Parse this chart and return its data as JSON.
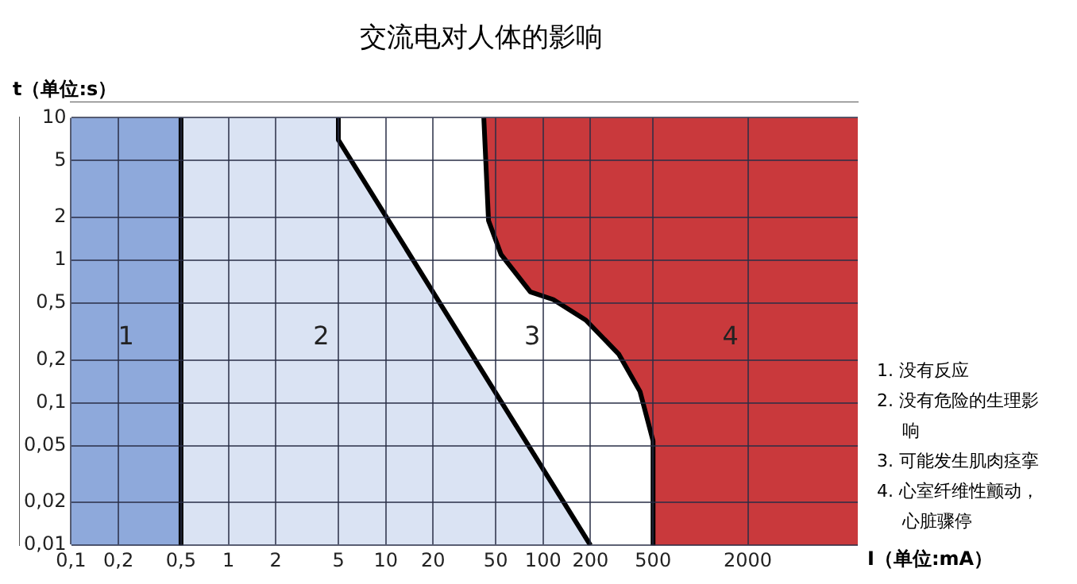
{
  "chart_data": {
    "type": "area",
    "title": "交流电对人体的影响",
    "xlabel": "I（单位:mA）",
    "ylabel": "t（单位:s）",
    "log": "xy",
    "grid": true,
    "legend": false,
    "xlim": [
      0.1,
      10000
    ],
    "ylim": [
      0.01,
      10
    ],
    "xticks": [
      {
        "value": 0.1,
        "label": "0,1"
      },
      {
        "value": 0.2,
        "label": "0,2"
      },
      {
        "value": 0.5,
        "label": "0,5"
      },
      1,
      2,
      5,
      10,
      20,
      50,
      100,
      200,
      500,
      2000
    ],
    "yticks": [
      10,
      5,
      2,
      1,
      {
        "value": 0.5,
        "label": "0,5"
      },
      {
        "value": 0.2,
        "label": "0,2"
      },
      {
        "value": 0.1,
        "label": "0,1"
      },
      {
        "value": 0.05,
        "label": "0,05"
      },
      {
        "value": 0.02,
        "label": "0,02"
      },
      {
        "value": 0.01,
        "label": "0,01"
      }
    ],
    "bands": [
      {
        "axis": "x",
        "from": 0.1,
        "to": 0.5,
        "color": "#8ea9db"
      },
      {
        "axis": "x",
        "from": 0.5,
        "to": 10000,
        "color": "#dae3f3"
      }
    ],
    "series": [
      {
        "type": "line",
        "color": "#000000",
        "x": [
          0.5,
          0.5
        ],
        "values": [
          10,
          0.01
        ]
      },
      {
        "color": "#ffffff",
        "x": [
          10000,
          5,
          5,
          200,
          10000
        ],
        "values": [
          10,
          10,
          7,
          0.01,
          0.01
        ]
      },
      {
        "color": "#c9393c",
        "x": [
          10000,
          42,
          45,
          54,
          83,
          116,
          187,
          302,
          413,
          500,
          500,
          10000
        ],
        "values": [
          10,
          10,
          1.9,
          1.1,
          0.6,
          0.53,
          0.38,
          0.22,
          0.12,
          0.054,
          0.01,
          0.01
        ]
      }
    ],
    "annotations": [
      "1",
      "2",
      "3",
      "4",
      "1. 没有反应",
      "2. 没有危险的生理影响",
      "3. 可能发生肌肉痉挛",
      "4. 心室纤维性颤动，心脏骤停"
    ]
  }
}
